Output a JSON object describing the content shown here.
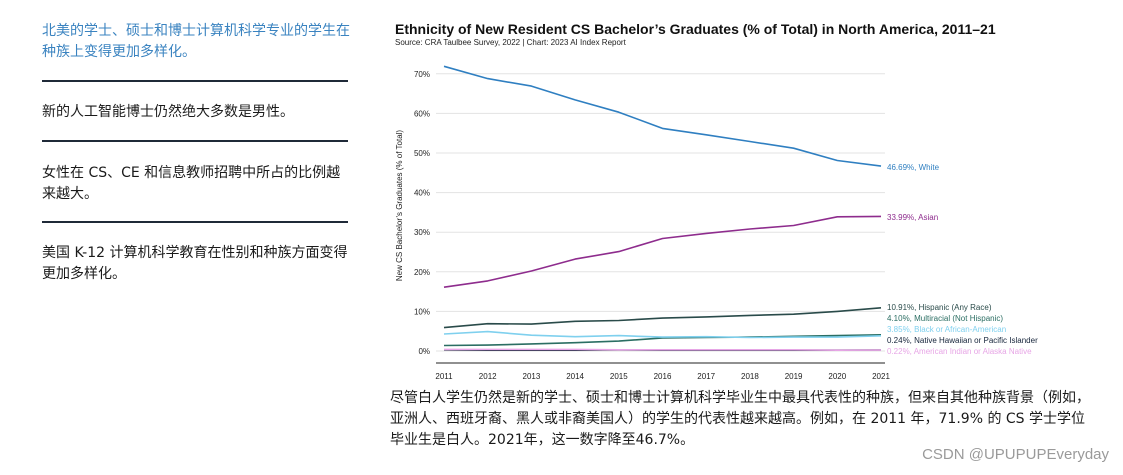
{
  "sidebar": {
    "items": [
      {
        "label": "北美的学士、硕士和博士计算机科学专业的学生在种族上变得更加多样化。",
        "active": true
      },
      {
        "label": "新的人工智能博士仍然绝大多数是男性。",
        "active": false
      },
      {
        "label": "女性在 CS、CE 和信息教师招聘中所占的比例越来越大。",
        "active": false
      },
      {
        "label": "美国 K-12 计算机科学教育在性别和种族方面变得更加多样化。",
        "active": false
      }
    ]
  },
  "chart_data": {
    "type": "line",
    "title": "Ethnicity of New Resident CS Bachelor’s Graduates (% of Total) in North America, 2011–21",
    "source": "Source: CRA Taulbee Survey, 2022 | Chart: 2023 AI Index Report",
    "xlabel": "",
    "ylabel": "New CS Bachelor’s Graduates (% of Total)",
    "x": [
      2011,
      2012,
      2013,
      2014,
      2015,
      2016,
      2017,
      2018,
      2019,
      2020,
      2021
    ],
    "ylim": [
      0,
      75
    ],
    "yticks": [
      "0%",
      "10%",
      "20%",
      "30%",
      "40%",
      "50%",
      "60%",
      "70%"
    ],
    "grid": true,
    "series": [
      {
        "name": "White",
        "label": "46.69%, White",
        "color": "#2f7fc1",
        "values": [
          71.9,
          68.8,
          66.9,
          63.4,
          60.3,
          56.2,
          54.6,
          52.9,
          51.2,
          48.1,
          46.69
        ]
      },
      {
        "name": "Asian",
        "label": "33.99%, Asian",
        "color": "#8e2c8d",
        "values": [
          16.1,
          17.7,
          20.2,
          23.2,
          25.1,
          28.4,
          29.7,
          30.8,
          31.7,
          33.9,
          33.99
        ]
      },
      {
        "name": "Hispanic (Any Race)",
        "label": "10.91%, Hispanic (Any Race)",
        "color": "#2a4b4a",
        "values": [
          5.9,
          6.9,
          6.8,
          7.5,
          7.7,
          8.3,
          8.6,
          9.0,
          9.3,
          10.0,
          10.91
        ]
      },
      {
        "name": "Multiracial (Not Hispanic)",
        "label": "4.10%, Multiracial (Not Hispanic)",
        "color": "#2b6e63",
        "values": [
          1.4,
          1.5,
          1.8,
          2.1,
          2.5,
          3.3,
          3.4,
          3.5,
          3.7,
          3.9,
          4.1
        ]
      },
      {
        "name": "Black or African-American",
        "label": "3.85%, Black or African-American",
        "color": "#7fd0ee",
        "values": [
          4.3,
          4.9,
          4.0,
          3.6,
          3.9,
          3.5,
          3.6,
          3.4,
          3.5,
          3.5,
          3.85
        ]
      },
      {
        "name": "Native Hawaiian or Pacific Islander",
        "label": "0.24%, Native Hawaiian or Pacific Islander",
        "color": "#15243a",
        "values": [
          0.3,
          0.2,
          0.2,
          0.2,
          0.3,
          0.2,
          0.2,
          0.2,
          0.2,
          0.2,
          0.24
        ]
      },
      {
        "name": "American Indian or Alaska Native",
        "label": "0.22%, American Indian or Alaska Native",
        "color": "#e7a6e6",
        "values": [
          0.4,
          0.4,
          0.4,
          0.4,
          0.3,
          0.3,
          0.3,
          0.3,
          0.3,
          0.2,
          0.22
        ]
      }
    ]
  },
  "caption": "尽管白人学生仍然是新的学士、硕士和博士计算机科学毕业生中最具代表性的种族，但来自其他种族背景（例如，亚洲人、西班牙裔、黑人或非裔美国人）的学生的代表性越来越高。例如，在 2011 年，71.9% 的 CS 学士学位毕业生是白人。2021年，这一数字降至46.7%。",
  "watermark": "CSDN @UPUPUPEveryday"
}
